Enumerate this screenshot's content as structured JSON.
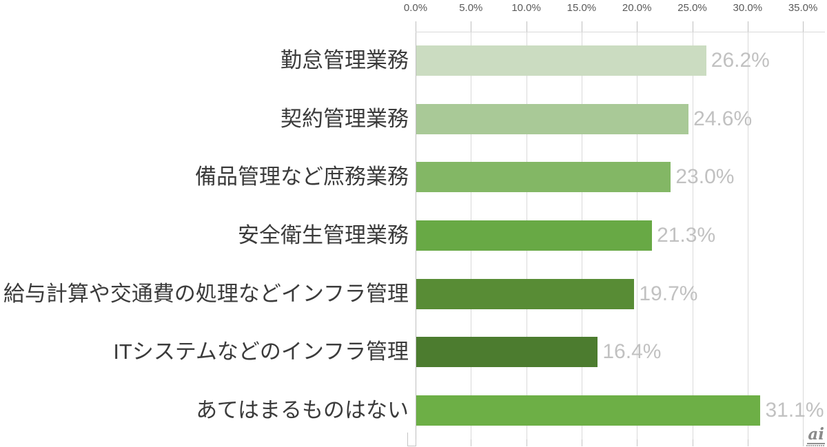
{
  "chart_data": {
    "type": "bar",
    "orientation": "horizontal",
    "title": "",
    "xlabel": "",
    "ylabel": "",
    "categories": [
      "勤怠管理業務",
      "契約管理業務",
      "備品管理など庶務業務",
      "安全衛生管理業務",
      "給与計算や交通費の処理などインフラ管理",
      "ITシステムなどのインフラ管理",
      "あてはまるものはない"
    ],
    "values": [
      26.2,
      24.6,
      23.0,
      21.3,
      19.7,
      16.4,
      31.1
    ],
    "value_labels": [
      "26.2%",
      "24.6%",
      "23.0%",
      "21.3%",
      "19.7%",
      "16.4%",
      "31.1%"
    ],
    "bar_colors": [
      "#cbdcc1",
      "#a9c997",
      "#83b765",
      "#68a945",
      "#588c35",
      "#4c7c2f",
      "#6daf46"
    ],
    "axis": {
      "position": "top",
      "min": 0,
      "max": 35,
      "step": 5,
      "tick_labels": [
        "0.0%",
        "5.0%",
        "10.0%",
        "15.0%",
        "20.0%",
        "25.0%",
        "30.0%",
        "35.0%"
      ]
    },
    "grid": true,
    "legend": false,
    "colors": {
      "grid": "#d9d9d9",
      "axis_line": "#bfbfbf",
      "tick": "#c4c4c4",
      "tick_label": "#595959",
      "category_label": "#3b3b3b",
      "data_label": "#c1c1c1",
      "background": "#ffffff"
    }
  },
  "watermark": {
    "text": "ai"
  }
}
